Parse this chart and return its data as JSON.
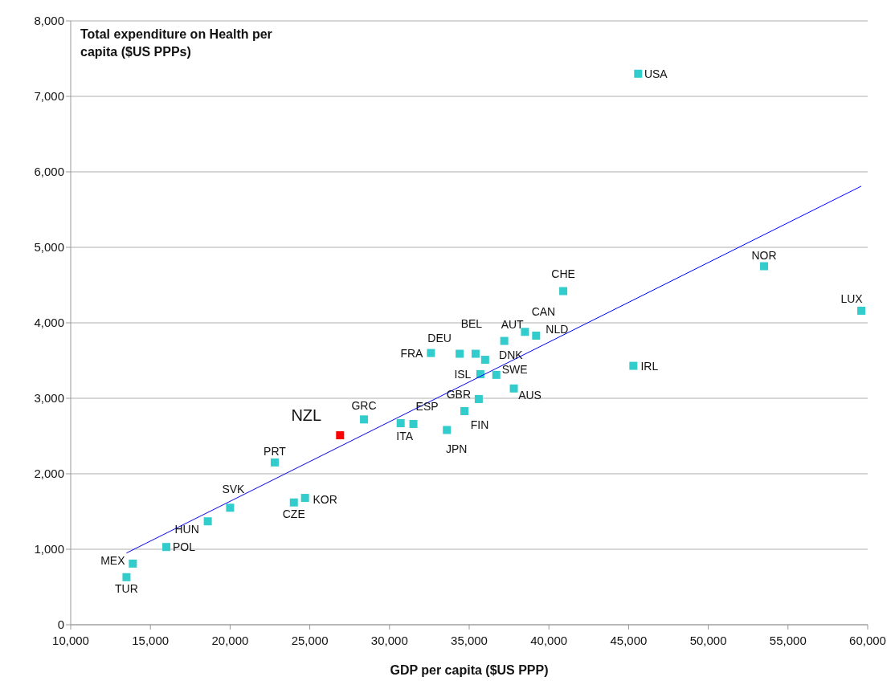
{
  "chart_data": {
    "type": "scatter",
    "xlabel": "GDP per capita ($US PPP)",
    "ylabel": "Total expenditure on Health per capita ($US PPPs)",
    "xlim": [
      10000,
      60000
    ],
    "xticks": [
      {
        "value": 10000,
        "label": "10,000"
      },
      {
        "value": 15000,
        "label": "15,000"
      },
      {
        "value": 20000,
        "label": "20,000"
      },
      {
        "value": 25000,
        "label": "25,000"
      },
      {
        "value": 30000,
        "label": "30,000"
      },
      {
        "value": 35000,
        "label": "35,000"
      },
      {
        "value": 40000,
        "label": "40,000"
      },
      {
        "value": 45000,
        "label": "45,000"
      },
      {
        "value": 50000,
        "label": "50,000"
      },
      {
        "value": 55000,
        "label": "55,000"
      },
      {
        "value": 60000,
        "label": "60,000"
      }
    ],
    "ylim": [
      0,
      8000
    ],
    "yticks": [
      0,
      {
        "value": 1000,
        "label": "1,000"
      },
      {
        "value": 2000,
        "label": "2,000"
      },
      {
        "value": 3000,
        "label": "3,000"
      },
      {
        "value": 4000,
        "label": "4,000"
      },
      {
        "value": 5000,
        "label": "5,000"
      },
      {
        "value": 6000,
        "label": "6,000"
      },
      {
        "value": 7000,
        "label": "7,000"
      },
      {
        "value": 8000,
        "label": "8,000"
      }
    ],
    "grid": "y",
    "series": [
      {
        "marker": "square",
        "color": "#33cccc",
        "x": [
          45600,
          53500,
          59600,
          45300,
          40900,
          38500,
          39200,
          37200,
          32600,
          34400,
          35400,
          36000,
          35700,
          36700,
          37800,
          35600,
          34700,
          33600,
          31500,
          30700,
          28400,
          22800,
          20000,
          18600,
          24000,
          24700,
          16000,
          13900,
          13500
        ],
        "values": [
          7300,
          4750,
          4160,
          3430,
          4420,
          3880,
          3830,
          3760,
          3600,
          3590,
          3590,
          3510,
          3320,
          3310,
          3130,
          2990,
          2830,
          2580,
          2660,
          2670,
          2720,
          2150,
          1550,
          1370,
          1620,
          1680,
          1030,
          810,
          630
        ]
      },
      {
        "marker": "square",
        "color": "#ff0000",
        "x": [
          26900
        ],
        "values": [
          2510
        ]
      },
      {
        "type": "line",
        "marker": "none",
        "color": "#0000ff",
        "x": [
          13500,
          59600
        ],
        "values": [
          950,
          5810
        ]
      }
    ],
    "annotations": [
      {
        "text": "USA",
        "x": 45600,
        "y": 7300
      },
      {
        "text": "NOR",
        "x": 53500,
        "y": 4750
      },
      {
        "text": "LUX",
        "x": 59600,
        "y": 4160
      },
      {
        "text": "IRL",
        "x": 45300,
        "y": 3430
      },
      {
        "text": "CHE",
        "x": 40900,
        "y": 4420
      },
      {
        "text": "CAN",
        "x": 38500,
        "y": 3880
      },
      {
        "text": "NLD",
        "x": 39200,
        "y": 3830
      },
      {
        "text": "AUT",
        "x": 37200,
        "y": 3760
      },
      {
        "text": "FRA",
        "x": 32600,
        "y": 3600
      },
      {
        "text": "DEU",
        "x": 34400,
        "y": 3590
      },
      {
        "text": "BEL",
        "x": 35400,
        "y": 3590
      },
      {
        "text": "DNK",
        "x": 36000,
        "y": 3510
      },
      {
        "text": "ISL",
        "x": 35700,
        "y": 3320
      },
      {
        "text": "SWE",
        "x": 36700,
        "y": 3310
      },
      {
        "text": "AUS",
        "x": 37800,
        "y": 3130
      },
      {
        "text": "GBR",
        "x": 35600,
        "y": 2990
      },
      {
        "text": "FIN",
        "x": 34700,
        "y": 2830
      },
      {
        "text": "JPN",
        "x": 33600,
        "y": 2580
      },
      {
        "text": "ESP",
        "x": 31500,
        "y": 2660
      },
      {
        "text": "ITA",
        "x": 30700,
        "y": 2670
      },
      {
        "text": "GRC",
        "x": 28400,
        "y": 2720
      },
      {
        "text": "PRT",
        "x": 22800,
        "y": 2150
      },
      {
        "text": "SVK",
        "x": 20000,
        "y": 1550
      },
      {
        "text": "HUN",
        "x": 18600,
        "y": 1370
      },
      {
        "text": "CZE",
        "x": 24000,
        "y": 1620
      },
      {
        "text": "KOR",
        "x": 24700,
        "y": 1680
      },
      {
        "text": "POL",
        "x": 16000,
        "y": 1030
      },
      {
        "text": "MEX",
        "x": 13900,
        "y": 810
      },
      {
        "text": "TUR",
        "x": 13500,
        "y": 630
      },
      {
        "text": "NZL",
        "x": 26900,
        "y": 2510
      }
    ]
  }
}
